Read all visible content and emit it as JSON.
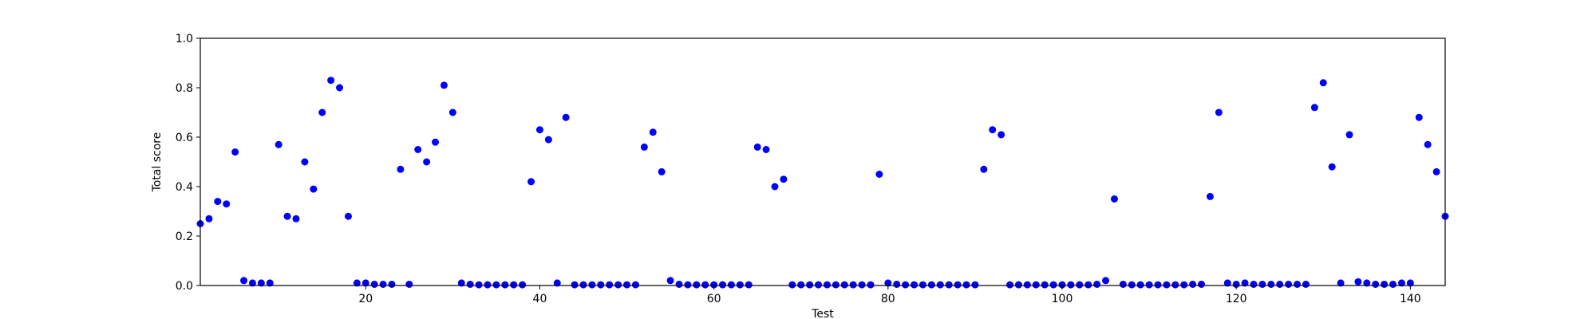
{
  "chart_data": {
    "type": "scatter",
    "title": "",
    "xlabel": "Test",
    "ylabel": "Total score",
    "xlim": [
      1,
      144
    ],
    "ylim": [
      0,
      1.0
    ],
    "xticks": [
      20,
      40,
      60,
      80,
      100,
      120,
      140
    ],
    "xtick_labels": [
      "20",
      "40",
      "60",
      "80",
      "100",
      "120",
      "140"
    ],
    "yticks": [
      0,
      0.2,
      0.4,
      0.6,
      0.8,
      1.0
    ],
    "ytick_labels": [
      "0.0",
      "0.2",
      "0.4",
      "0.6",
      "0.8",
      "1.0"
    ],
    "grid": false,
    "marker_color": "#0000ff",
    "series": [
      {
        "x": [
          1,
          2,
          3,
          4,
          5,
          6,
          7,
          8,
          9,
          10,
          11,
          12,
          13,
          14,
          15,
          16,
          17,
          18,
          19,
          20,
          21,
          22,
          23,
          24,
          25,
          26,
          27,
          28,
          29,
          30,
          31,
          32,
          33,
          34,
          35,
          36,
          37,
          38,
          39,
          40,
          41,
          42,
          43,
          44,
          45,
          46,
          47,
          48,
          49,
          50,
          51,
          52,
          53,
          54,
          55,
          56,
          57,
          58,
          59,
          60,
          61,
          62,
          63,
          64,
          65,
          66,
          67,
          68,
          69,
          70,
          71,
          72,
          73,
          74,
          75,
          76,
          77,
          78,
          79,
          80,
          81,
          82,
          83,
          84,
          85,
          86,
          87,
          88,
          89,
          90,
          91,
          92,
          93,
          94,
          95,
          96,
          97,
          98,
          99,
          100,
          101,
          102,
          103,
          104,
          105,
          106,
          107,
          108,
          109,
          110,
          111,
          112,
          113,
          114,
          115,
          116,
          117,
          118,
          119,
          120,
          121,
          122,
          123,
          124,
          125,
          126,
          127,
          128,
          129,
          130,
          131,
          132,
          133,
          134,
          135,
          136,
          137,
          138,
          139,
          140,
          141,
          142,
          143,
          144
        ],
        "y": [
          0.25,
          0.27,
          0.34,
          0.33,
          0.54,
          0.02,
          0.01,
          0.01,
          0.01,
          0.57,
          0.28,
          0.27,
          0.5,
          0.39,
          0.7,
          0.83,
          0.8,
          0.28,
          0.01,
          0.01,
          0.005,
          0.005,
          0.005,
          0.47,
          0.005,
          0.55,
          0.5,
          0.58,
          0.81,
          0.7,
          0.01,
          0.005,
          0.003,
          0.003,
          0.003,
          0.003,
          0.003,
          0.003,
          0.42,
          0.63,
          0.59,
          0.01,
          0.68,
          0.003,
          0.003,
          0.003,
          0.003,
          0.003,
          0.003,
          0.003,
          0.003,
          0.56,
          0.62,
          0.46,
          0.02,
          0.005,
          0.003,
          0.003,
          0.003,
          0.003,
          0.003,
          0.003,
          0.003,
          0.003,
          0.56,
          0.55,
          0.4,
          0.43,
          0.003,
          0.003,
          0.003,
          0.003,
          0.003,
          0.003,
          0.003,
          0.003,
          0.003,
          0.003,
          0.45,
          0.01,
          0.005,
          0.003,
          0.003,
          0.003,
          0.003,
          0.003,
          0.003,
          0.003,
          0.003,
          0.003,
          0.47,
          0.63,
          0.61,
          0.003,
          0.003,
          0.003,
          0.003,
          0.003,
          0.003,
          0.003,
          0.003,
          0.003,
          0.003,
          0.005,
          0.02,
          0.35,
          0.005,
          0.003,
          0.003,
          0.003,
          0.003,
          0.003,
          0.003,
          0.003,
          0.005,
          0.005,
          0.36,
          0.7,
          0.01,
          0.005,
          0.01,
          0.005,
          0.005,
          0.005,
          0.005,
          0.005,
          0.005,
          0.005,
          0.72,
          0.82,
          0.48,
          0.01,
          0.61,
          0.015,
          0.01,
          0.005,
          0.005,
          0.005,
          0.01,
          0.01,
          0.68,
          0.57,
          0.46,
          0.28
        ]
      }
    ]
  }
}
